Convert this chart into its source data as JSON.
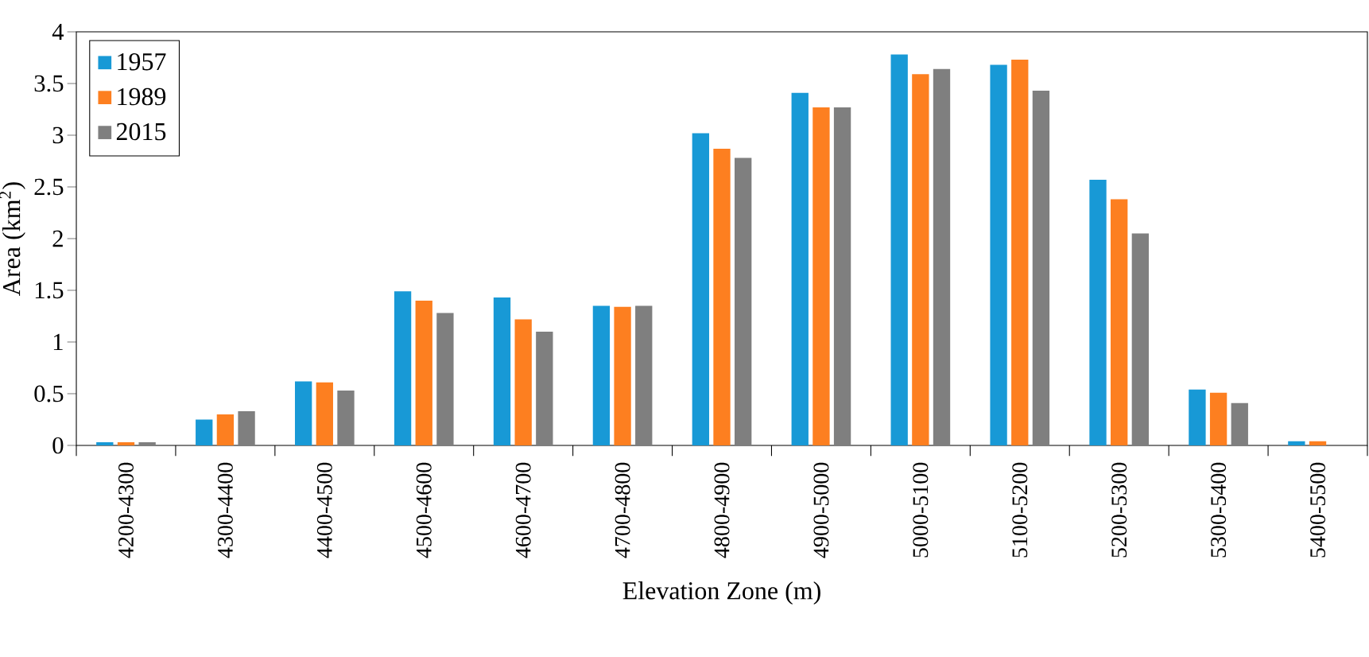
{
  "chart_data": {
    "type": "bar",
    "categories": [
      "4200-4300",
      "4300-4400",
      "4400-4500",
      "4500-4600",
      "4600-4700",
      "4700-4800",
      "4800-4900",
      "4900-5000",
      "5000-5100",
      "5100-5200",
      "5200-5300",
      "5300-5400",
      "5400-5500"
    ],
    "series": [
      {
        "name": "1957",
        "color": "#1899d6",
        "values": [
          0.03,
          0.25,
          0.62,
          1.49,
          1.43,
          1.35,
          3.02,
          3.41,
          3.78,
          3.68,
          2.57,
          0.54,
          0.04
        ]
      },
      {
        "name": "1989",
        "color": "#fd7f20",
        "values": [
          0.03,
          0.3,
          0.61,
          1.4,
          1.22,
          1.34,
          2.87,
          3.27,
          3.59,
          3.73,
          2.38,
          0.51,
          0.04
        ]
      },
      {
        "name": "2015",
        "color": "#7f7f7f",
        "values": [
          0.03,
          0.33,
          0.53,
          1.28,
          1.1,
          1.35,
          2.78,
          3.27,
          3.64,
          3.43,
          2.05,
          0.41,
          0
        ]
      }
    ],
    "xlabel": "Elevation Zone (m)",
    "ylabel": "Area (km$^{2}$)",
    "ylim": [
      0,
      4
    ],
    "yticks": [
      0,
      0.5,
      1,
      1.5,
      2,
      2.5,
      3,
      3.5,
      4
    ],
    "legend": "top left",
    "grid": false
  }
}
